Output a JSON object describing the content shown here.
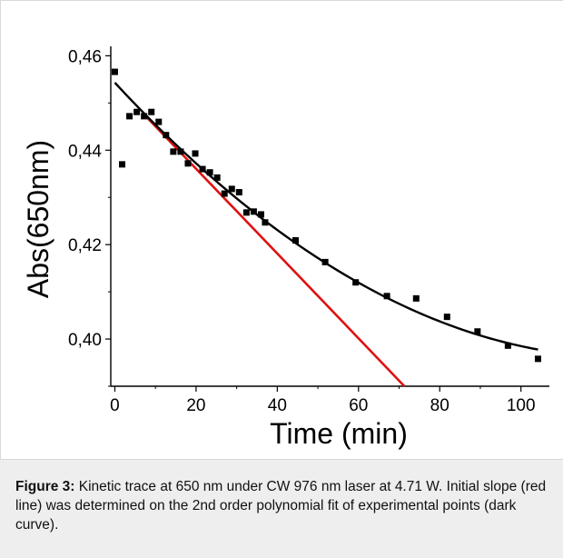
{
  "chart_data": {
    "type": "scatter",
    "xlabel": "Time (min)",
    "ylabel": "Abs(650nm)",
    "xlim": [
      -1,
      107
    ],
    "ylim": [
      0.39,
      0.462
    ],
    "xticks": [
      0,
      20,
      40,
      60,
      80,
      100
    ],
    "xtick_labels": [
      "0",
      "20",
      "40",
      "60",
      "80",
      "100"
    ],
    "yticks": [
      0.4,
      0.42,
      0.44,
      0.46
    ],
    "ytick_labels": [
      "0,40",
      "0,42",
      "0,44",
      "0,46"
    ],
    "grid": false,
    "series": [
      {
        "kind": "points",
        "color": "#000000",
        "x": [
          0,
          1.8,
          3.6,
          5.4,
          7.2,
          9.0,
          10.8,
          12.6,
          14.4,
          16.2,
          18.0,
          19.8,
          21.6,
          23.4,
          25.2,
          27.0,
          28.8,
          30.6,
          32.4,
          34.2,
          36.0,
          37.0,
          44.5,
          51.8,
          59.3,
          67.0,
          74.2,
          81.8,
          89.3,
          96.8,
          104.2
        ],
        "y": [
          0.4566,
          0.437,
          0.4472,
          0.4481,
          0.4472,
          0.4481,
          0.446,
          0.4432,
          0.4397,
          0.4397,
          0.4372,
          0.4393,
          0.436,
          0.4353,
          0.4342,
          0.4308,
          0.4318,
          0.4311,
          0.4268,
          0.427,
          0.4264,
          0.4247,
          0.4209,
          0.4163,
          0.412,
          0.4091,
          0.4086,
          0.4047,
          0.4016,
          0.3986,
          0.3958
        ]
      },
      {
        "kind": "polynomial_fit",
        "color": "#000000",
        "coefficients": [
          0.4543,
          -0.000928,
          3.7e-06
        ]
      },
      {
        "kind": "initial_slope",
        "color": "#dd1111",
        "x": [
          7.5,
          71.3
        ],
        "y": [
          0.4473,
          0.39
        ]
      }
    ]
  },
  "caption": {
    "label": "Figure 3:",
    "text": " Kinetic trace at 650 nm under CW 976 nm laser at 4.71 W. Initial slope (red line) was determined on the 2nd order polynomial fit of experimental points (dark curve)."
  }
}
